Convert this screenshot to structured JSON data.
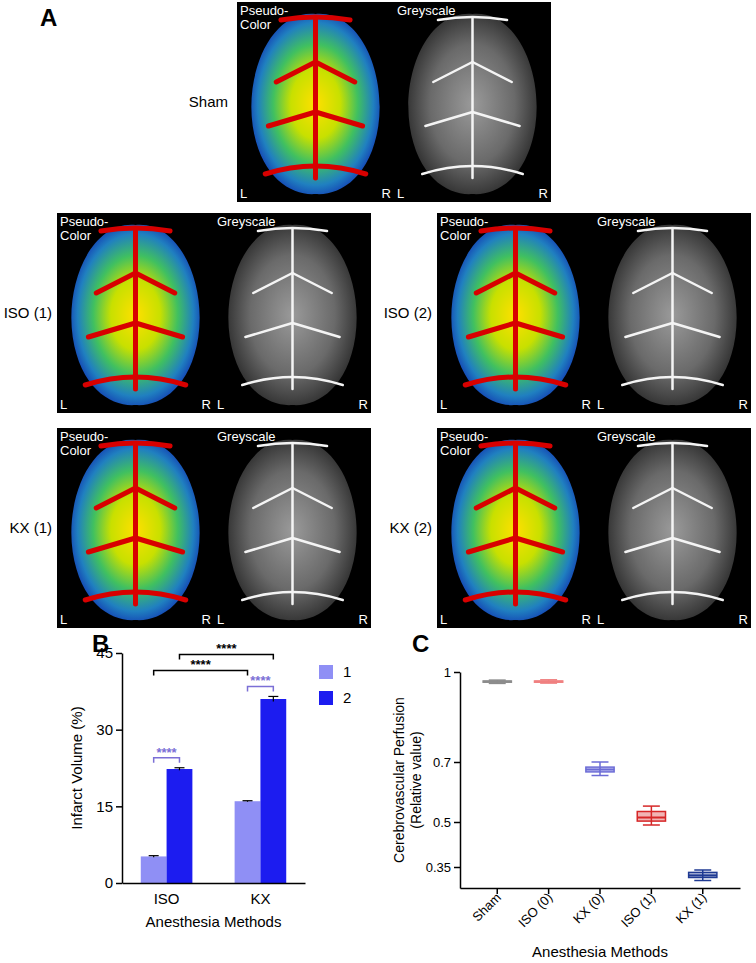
{
  "figure_panel": {
    "title": "A",
    "images": [
      {
        "name": "Sham",
        "pseudo_label": [
          "Pseudo-",
          "Color"
        ],
        "grey_label": "Greyscale",
        "sides": [
          "L",
          "R"
        ]
      },
      {
        "name": "ISO (1)",
        "pseudo_label": [
          "Pseudo-",
          "Color"
        ],
        "grey_label": "Greyscale",
        "sides": [
          "L",
          "R"
        ]
      },
      {
        "name": "ISO (2)",
        "pseudo_label": [
          "Pseudo-",
          "Color"
        ],
        "grey_label": "Greyscale",
        "sides": [
          "L",
          "R"
        ]
      },
      {
        "name": "KX (1)",
        "pseudo_label": [
          "Pseudo-",
          "Color"
        ],
        "grey_label": "Greyscale",
        "sides": [
          "L",
          "R"
        ]
      },
      {
        "name": "KX (2)",
        "pseudo_label": [
          "Pseudo-",
          "Color"
        ],
        "grey_label": "Greyscale",
        "sides": [
          "L",
          "R"
        ]
      }
    ]
  },
  "chart_data": [
    {
      "type": "bar",
      "title": "B",
      "categories": [
        "ISO",
        "KX"
      ],
      "series": [
        {
          "name": "1",
          "color": "#8f8ff5",
          "values": [
            5.2,
            16.0
          ],
          "error": [
            0.15,
            0.1
          ]
        },
        {
          "name": "2",
          "color": "#1c1cf0",
          "values": [
            22.3,
            36.0
          ],
          "error": [
            0.25,
            0.5
          ]
        }
      ],
      "xlabel": "Anesthesia Methods",
      "ylabel": "Infarct Volume (%)",
      "ylim": [
        0,
        45
      ],
      "yticks": [
        0,
        15,
        30,
        45
      ],
      "legend": "right",
      "annotations": [
        {
          "text": "****",
          "color": "#7b6fd6",
          "from": {
            "category": "ISO",
            "series": "1"
          },
          "to": {
            "category": "ISO",
            "series": "2"
          }
        },
        {
          "text": "****",
          "color": "#7b6fd6",
          "from": {
            "category": "KX",
            "series": "1"
          },
          "to": {
            "category": "KX",
            "series": "2"
          }
        },
        {
          "text": "****",
          "color": "#000000",
          "from": {
            "category": "ISO",
            "series": "1"
          },
          "to": {
            "category": "KX",
            "series": "1"
          }
        },
        {
          "text": "****",
          "color": "#000000",
          "from": {
            "category": "ISO",
            "series": "2"
          },
          "to": {
            "category": "KX",
            "series": "2"
          }
        }
      ]
    },
    {
      "type": "box",
      "title": "C",
      "categories": [
        "Sham",
        "ISO (0)",
        "KX (0)",
        "ISO (1)",
        "KX (1)"
      ],
      "min": [
        0.962,
        0.963,
        0.655,
        0.49,
        0.305
      ],
      "q1": [
        0.966,
        0.966,
        0.667,
        0.503,
        0.315
      ],
      "median": [
        0.968,
        0.968,
        0.675,
        0.515,
        0.322
      ],
      "q3": [
        0.97,
        0.97,
        0.683,
        0.535,
        0.332
      ],
      "max": [
        0.973,
        0.974,
        0.7,
        0.553,
        0.34
      ],
      "colors": [
        "#8c8c8c",
        "#f08080",
        "#6b6bd6",
        "#d62728",
        "#1f3a93"
      ],
      "xlabel": "Anesthesia Methods",
      "ylabel": [
        "Cerebrovascular Perfusion",
        "(Relative value)"
      ],
      "ylim": [
        0.28,
        1.0
      ],
      "yticks": [
        0.35,
        0.5,
        0.7,
        1
      ]
    }
  ]
}
